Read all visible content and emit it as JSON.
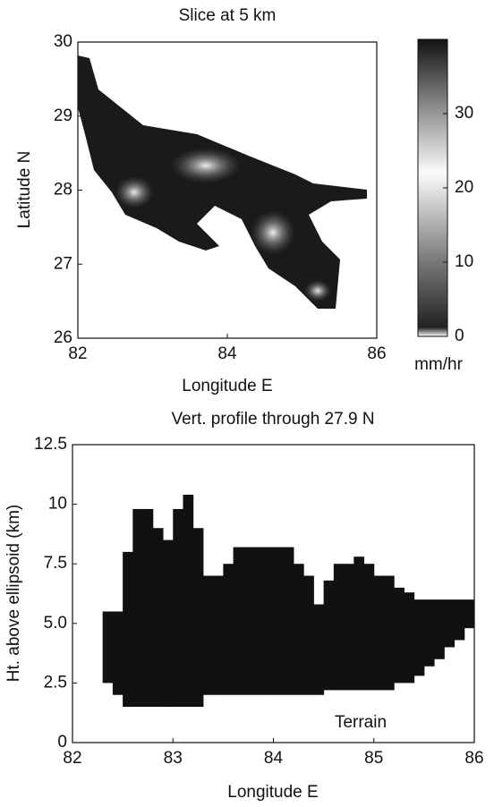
{
  "chart_data": [
    {
      "type": "heatmap",
      "title": "Slice at 5 km",
      "x_label": "Longitude E",
      "y_label": "Latitude N",
      "xlim": [
        82,
        86
      ],
      "ylim": [
        26,
        30
      ],
      "xticks": [
        82,
        84,
        86
      ],
      "yticks": [
        26,
        27,
        28,
        29,
        30
      ],
      "colorbar": {
        "label": "mm/hr",
        "lim": [
          0,
          40
        ],
        "ticks": [
          0,
          10,
          20,
          30
        ]
      }
    },
    {
      "type": "bar",
      "title": "Vert. profile through 27.9 N",
      "x_label": "Longitude E",
      "y_label": "Ht. above ellipsoid (km)",
      "annotation": "Terrain",
      "color": "#111111",
      "bin_width": 0.1,
      "xlim": [
        82,
        86
      ],
      "ylim": [
        0,
        12.5
      ],
      "xticks": [
        82,
        83,
        84,
        85,
        86
      ],
      "yticks": [
        0,
        2.5,
        {
          "value": 5,
          "label": "5.0"
        },
        7.5,
        10,
        12.5
      ],
      "x": [
        82.3,
        82.4,
        82.5,
        82.6,
        82.7,
        82.8,
        82.9,
        83.0,
        83.1,
        83.2,
        83.3,
        83.4,
        83.5,
        83.6,
        83.7,
        83.8,
        83.9,
        84.0,
        84.1,
        84.2,
        84.3,
        84.4,
        84.5,
        84.6,
        84.7,
        84.8,
        84.9,
        85.0,
        85.1,
        85.2,
        85.3,
        85.4,
        85.5,
        85.6,
        85.7,
        85.8,
        85.9
      ],
      "base": [
        2.5,
        2.0,
        1.5,
        1.5,
        1.5,
        1.5,
        1.5,
        1.5,
        1.5,
        1.5,
        2.0,
        2.0,
        2.0,
        2.0,
        2.0,
        2.0,
        2.0,
        2.0,
        2.0,
        2.0,
        2.0,
        2.0,
        2.2,
        2.2,
        2.2,
        2.2,
        2.2,
        2.2,
        2.2,
        2.5,
        2.5,
        2.8,
        3.2,
        3.5,
        4.0,
        4.3,
        4.8
      ],
      "top": [
        5.5,
        5.5,
        8.0,
        9.8,
        9.8,
        9.0,
        8.5,
        9.8,
        10.4,
        9.0,
        7.0,
        7.0,
        7.5,
        8.2,
        8.2,
        8.2,
        8.2,
        8.2,
        8.2,
        7.5,
        7.0,
        5.8,
        6.8,
        7.5,
        7.5,
        7.8,
        7.5,
        7.0,
        7.0,
        6.5,
        6.3,
        6.0,
        6.0,
        6.0,
        6.0,
        6.0,
        6.0
      ]
    }
  ]
}
